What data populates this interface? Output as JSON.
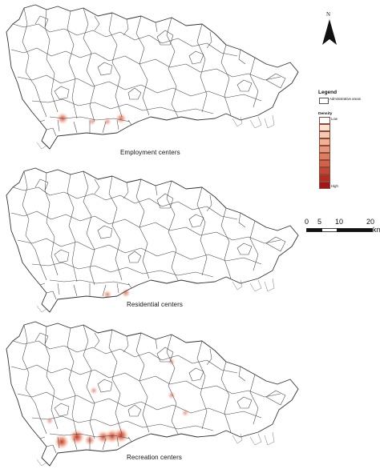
{
  "north_arrow": {
    "label": "N"
  },
  "maps": [
    {
      "caption": "Employment centers",
      "hotspots": [
        {
          "x": 78,
          "y": 148,
          "intensity": 0.6
        },
        {
          "x": 151,
          "y": 148,
          "intensity": 0.5
        },
        {
          "x": 134,
          "y": 152,
          "intensity": 0.2
        },
        {
          "x": 115,
          "y": 152,
          "intensity": 0.15
        }
      ]
    },
    {
      "caption": "Residential centers",
      "hotspots": [
        {
          "x": 134,
          "y": 164,
          "intensity": 0.3
        },
        {
          "x": 157,
          "y": 162,
          "intensity": 0.35
        }
      ]
    },
    {
      "caption": "Recreation centers",
      "hotspots": [
        {
          "x": 77,
          "y": 156,
          "intensity": 0.9
        },
        {
          "x": 96,
          "y": 150,
          "intensity": 0.95
        },
        {
          "x": 112,
          "y": 154,
          "intensity": 0.5
        },
        {
          "x": 129,
          "y": 150,
          "intensity": 0.75
        },
        {
          "x": 140,
          "y": 149,
          "intensity": 0.85
        },
        {
          "x": 151,
          "y": 148,
          "intensity": 0.95
        },
        {
          "x": 62,
          "y": 130,
          "intensity": 0.15
        },
        {
          "x": 117,
          "y": 92,
          "intensity": 0.2
        },
        {
          "x": 214,
          "y": 98,
          "intensity": 0.2
        },
        {
          "x": 214,
          "y": 56,
          "intensity": 0.12
        },
        {
          "x": 231,
          "y": 120,
          "intensity": 0.15
        }
      ]
    }
  ],
  "legend": {
    "title": "Legend",
    "admin_label": "Administrative areas",
    "density_title": "Density",
    "low_label": "Low",
    "high_label": "High",
    "colors": [
      "#ffffff",
      "#fbe3d3",
      "#f6cab1",
      "#f0b094",
      "#e89678",
      "#de7c60",
      "#d3614a",
      "#c64636",
      "#b42b24",
      "#a6141a"
    ]
  },
  "scale": {
    "labels": [
      "0",
      "5",
      "10",
      "20"
    ],
    "unit": "km"
  }
}
